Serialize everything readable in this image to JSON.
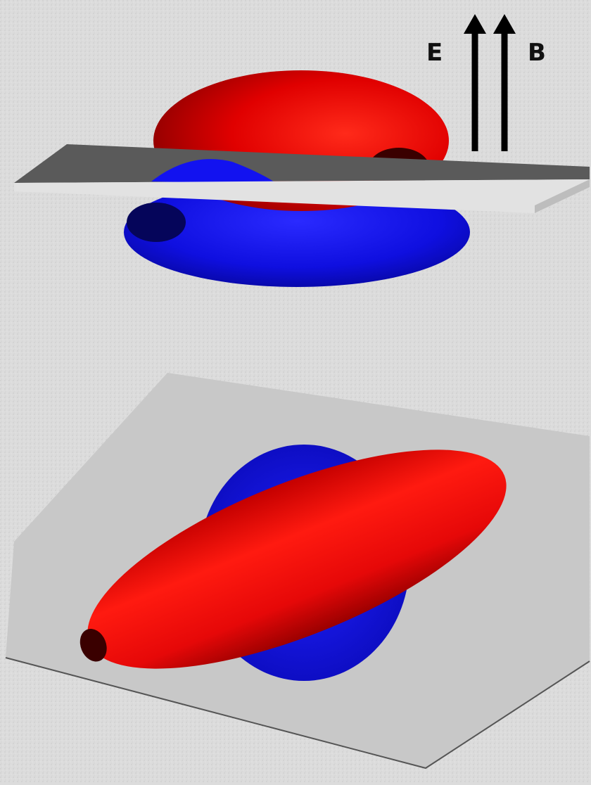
{
  "arrow_labels": {
    "e_field": "E",
    "b_field": "B"
  },
  "colors": {
    "background": "#dcdcdc",
    "positive_lobe": "#ff1010",
    "positive_lobe_shade": "#a00000",
    "negative_lobe": "#1414ff",
    "negative_lobe_shade": "#06068a",
    "plane_top": "#555555",
    "plane_edge": "#dcdcdc",
    "lower_plane": "#c7c7c7",
    "arrow": "#000000"
  }
}
